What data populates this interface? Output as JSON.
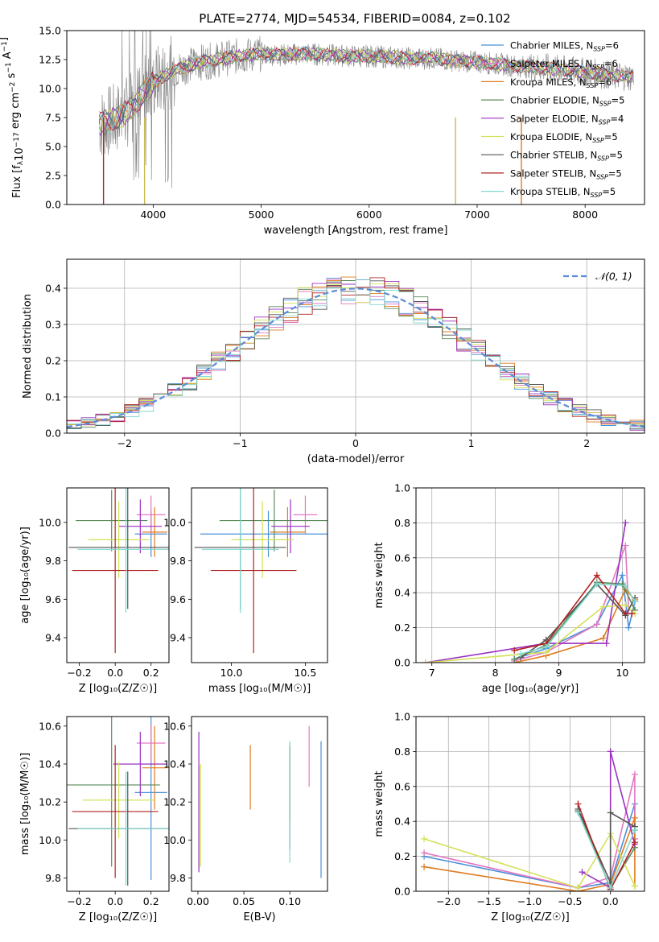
{
  "title": "PLATE=2774, MJD=54534, FIBERID=0084, z=0.102",
  "colors": {
    "Chabrier MILES": "#4a90d9",
    "Salpeter MILES": "#e377c2",
    "Kroupa MILES": "#e07b20",
    "Chabrier ELODIE": "#5a8a5a",
    "Salpeter ELODIE": "#9b30c0",
    "Kroupa ELODIE": "#d4e157",
    "Chabrier STELIB": "#555555",
    "Salpeter STELIB": "#b22222",
    "Kroupa STELIB": "#80d8d0",
    "gaussian": "#5b8bd9",
    "data": "#808080"
  },
  "chart_data": [
    {
      "id": "spectrum",
      "type": "line",
      "title": "PLATE=2774, MJD=54534, FIBERID=0084, z=0.102",
      "xlabel": "wavelength [Angstrom, rest frame]",
      "ylabel": "Flux [fλ10⁻¹⁷ erg cm⁻² s⁻¹ A⁻¹]",
      "xlim": [
        3200,
        8550
      ],
      "ylim": [
        0,
        15
      ],
      "xticks": [
        4000,
        5000,
        6000,
        7000,
        8000
      ],
      "yticks": [
        0.0,
        2.5,
        5.0,
        7.5,
        10.0,
        12.5,
        15.0
      ],
      "x": [
        3520,
        3600,
        3700,
        3800,
        3900,
        4000,
        4200,
        4400,
        4600,
        4800,
        5000,
        5200,
        5400,
        5600,
        5800,
        6000,
        6200,
        6400,
        6600,
        6800,
        7000,
        7200,
        7400,
        7600,
        7800,
        8000,
        8200,
        8450
      ],
      "model": [
        7.0,
        7.2,
        7.6,
        8.3,
        9.5,
        10.5,
        11.6,
        12.2,
        12.5,
        12.8,
        13.0,
        12.9,
        13.0,
        12.9,
        12.8,
        12.8,
        12.7,
        12.6,
        12.6,
        12.4,
        12.3,
        12.1,
        11.9,
        11.8,
        11.6,
        11.4,
        11.2,
        11.0
      ],
      "legend": [
        "Chabrier MILES, N_SSP=6",
        "Salpeter MILES, N_SSP=6",
        "Kroupa MILES, N_SSP=6",
        "Chabrier ELODIE, N_SSP=5",
        "Salpeter ELODIE, N_SSP=4",
        "Kroupa ELODIE, N_SSP=5",
        "Chabrier STELIB, N_SSP=5",
        "Salpeter STELIB, N_SSP=5",
        "Kroupa STELIB, N_SSP=5"
      ],
      "legend_placement": "right"
    },
    {
      "id": "residuals",
      "type": "line",
      "xlabel": "(data-model)/error",
      "ylabel": "Normed distribution",
      "xlim": [
        -2.5,
        2.5
      ],
      "ylim": [
        0,
        0.48
      ],
      "xticks": [
        -2,
        -1,
        0,
        1,
        2
      ],
      "yticks": [
        0.0,
        0.1,
        0.2,
        0.3,
        0.4
      ],
      "gaussian_label": "𝒩(0, 1)",
      "grid": true
    },
    {
      "id": "age-vs-Z",
      "type": "scatter",
      "xlabel": "Z [log₁₀(Z/Z☉)]",
      "ylabel": "age  [log₁₀(age/yr)]",
      "xlim": [
        -0.27,
        0.3
      ],
      "ylim": [
        9.27,
        10.18
      ],
      "xticks": [
        -0.2,
        0.0,
        0.2
      ],
      "yticks": [
        9.4,
        9.6,
        9.8,
        10.0
      ],
      "points": [
        {
          "model": "Chabrier MILES",
          "x": 0.2,
          "y": 9.94,
          "xerr": 0.09,
          "yerr": 0.12
        },
        {
          "model": "Salpeter MILES",
          "x": 0.2,
          "y": 10.04,
          "xerr": 0.08,
          "yerr": 0.1
        },
        {
          "model": "Kroupa MILES",
          "x": 0.22,
          "y": 9.95,
          "xerr": 0.07,
          "yerr": 0.13
        },
        {
          "model": "Chabrier ELODIE",
          "x": -0.02,
          "y": 10.01,
          "xerr": 0.2,
          "yerr": 0.16
        },
        {
          "model": "Salpeter ELODIE",
          "x": 0.14,
          "y": 9.98,
          "xerr": 0.12,
          "yerr": 0.14
        },
        {
          "model": "Kroupa ELODIE",
          "x": 0.02,
          "y": 9.91,
          "xerr": 0.17,
          "yerr": 0.2
        },
        {
          "model": "Chabrier STELIB",
          "x": 0.07,
          "y": 9.87,
          "xerr": 0.33,
          "yerr": 0.32
        },
        {
          "model": "Salpeter STELIB",
          "x": 0.0,
          "y": 9.75,
          "xerr": 0.24,
          "yerr": 0.43
        },
        {
          "model": "Kroupa STELIB",
          "x": 0.06,
          "y": 9.86,
          "xerr": 0.27,
          "yerr": 0.33
        }
      ]
    },
    {
      "id": "age-vs-mass",
      "type": "scatter",
      "xlabel": "mass [log₁₀(M/M☉)]",
      "xlim": [
        9.73,
        10.65
      ],
      "ylim": [
        9.27,
        10.18
      ],
      "xticks": [
        10.0,
        10.5
      ],
      "yticks": [
        9.4,
        9.6,
        9.8,
        10.0
      ],
      "points": [
        {
          "model": "Chabrier MILES",
          "x": 10.25,
          "y": 9.94,
          "xerr": 0.46,
          "yerr": 0.12
        },
        {
          "model": "Salpeter MILES",
          "x": 10.5,
          "y": 10.04,
          "xerr": 0.08,
          "yerr": 0.1
        },
        {
          "model": "Kroupa MILES",
          "x": 10.38,
          "y": 9.95,
          "xerr": 0.12,
          "yerr": 0.13
        },
        {
          "model": "Chabrier ELODIE",
          "x": 10.29,
          "y": 10.01,
          "xerr": 0.37,
          "yerr": 0.16
        },
        {
          "model": "Salpeter ELODIE",
          "x": 10.4,
          "y": 9.98,
          "xerr": 0.13,
          "yerr": 0.14
        },
        {
          "model": "Kroupa ELODIE",
          "x": 10.21,
          "y": 9.91,
          "xerr": 0.21,
          "yerr": 0.2
        },
        {
          "model": "Chabrier STELIB",
          "x": 10.06,
          "y": 9.87,
          "xerr": 0.31,
          "yerr": 0.32
        },
        {
          "model": "Salpeter STELIB",
          "x": 10.15,
          "y": 9.75,
          "xerr": 0.29,
          "yerr": 0.43
        },
        {
          "model": "Kroupa STELIB",
          "x": 10.06,
          "y": 9.86,
          "xerr": 0.26,
          "yerr": 0.33
        }
      ]
    },
    {
      "id": "weight-vs-age",
      "type": "line",
      "xlabel": "age  [log₁₀(age/yr)]",
      "ylabel": "mass weight",
      "xlim": [
        6.75,
        10.35
      ],
      "ylim": [
        0,
        1.0
      ],
      "xticks": [
        7,
        8,
        9,
        10
      ],
      "yticks": [
        0.0,
        0.2,
        0.4,
        0.6,
        0.8,
        1.0
      ],
      "grid": true,
      "series": [
        {
          "model": "Chabrier MILES",
          "x": [
            8.3,
            8.8,
            9.6,
            10.0,
            10.1,
            10.2
          ],
          "y": [
            0.02,
            0.08,
            0.22,
            0.5,
            0.2,
            0.35
          ]
        },
        {
          "model": "Salpeter MILES",
          "x": [
            8.3,
            8.8,
            9.6,
            10.05,
            10.1
          ],
          "y": [
            0.01,
            0.06,
            0.22,
            0.67,
            0.3
          ]
        },
        {
          "model": "Kroupa MILES",
          "x": [
            8.3,
            8.8,
            9.7,
            10.05,
            10.2
          ],
          "y": [
            0.0,
            0.04,
            0.14,
            0.42,
            0.36
          ]
        },
        {
          "model": "Chabrier ELODIE",
          "x": [
            8.3,
            8.8,
            9.6,
            10.0,
            10.2
          ],
          "y": [
            0.02,
            0.1,
            0.46,
            0.45,
            0.3
          ]
        },
        {
          "model": "Salpeter ELODIE",
          "x": [
            6.9,
            8.8,
            9.75,
            10.05
          ],
          "y": [
            0.0,
            0.11,
            0.11,
            0.8
          ]
        },
        {
          "model": "Kroupa ELODIE",
          "x": [
            6.9,
            8.8,
            9.7,
            10.05,
            10.2
          ],
          "y": [
            0.0,
            0.06,
            0.32,
            0.33,
            0.28
          ]
        },
        {
          "model": "Chabrier STELIB",
          "x": [
            8.4,
            8.8,
            9.6,
            10.05,
            10.2
          ],
          "y": [
            0.03,
            0.13,
            0.45,
            0.27,
            0.37
          ]
        },
        {
          "model": "Salpeter STELIB",
          "x": [
            8.3,
            8.8,
            9.6,
            10.05,
            10.15
          ],
          "y": [
            0.07,
            0.11,
            0.5,
            0.28,
            0.28
          ]
        },
        {
          "model": "Kroupa STELIB",
          "x": [
            8.4,
            8.8,
            9.6,
            10.05,
            10.2
          ],
          "y": [
            0.05,
            0.09,
            0.45,
            0.44,
            0.35
          ]
        }
      ]
    },
    {
      "id": "mass-vs-Z",
      "type": "scatter",
      "xlabel": "Z [log₁₀(Z/Z☉)]",
      "ylabel": "mass [log₁₀(M/M☉)]",
      "xlim": [
        -0.27,
        0.3
      ],
      "ylim": [
        9.73,
        10.65
      ],
      "xticks": [
        -0.2,
        0.0,
        0.2
      ],
      "yticks": [
        9.8,
        10.0,
        10.2,
        10.4,
        10.6
      ],
      "points": [
        {
          "model": "Chabrier MILES",
          "x": 0.2,
          "y": 10.25,
          "xerr": 0.09,
          "yerr": 0.46
        },
        {
          "model": "Salpeter MILES",
          "x": 0.2,
          "y": 10.51,
          "xerr": 0.08,
          "yerr": 0.1
        },
        {
          "model": "Kroupa MILES",
          "x": 0.22,
          "y": 10.38,
          "xerr": 0.07,
          "yerr": 0.22
        },
        {
          "model": "Chabrier ELODIE",
          "x": -0.02,
          "y": 10.29,
          "xerr": 0.27,
          "yerr": 0.43
        },
        {
          "model": "Salpeter ELODIE",
          "x": 0.14,
          "y": 10.4,
          "xerr": 0.15,
          "yerr": 0.17
        },
        {
          "model": "Kroupa ELODIE",
          "x": 0.02,
          "y": 10.21,
          "xerr": 0.2,
          "yerr": 0.2
        },
        {
          "model": "Chabrier STELIB",
          "x": 0.07,
          "y": 10.06,
          "xerr": 0.33,
          "yerr": 0.3
        },
        {
          "model": "Salpeter STELIB",
          "x": 0.0,
          "y": 10.15,
          "xerr": 0.24,
          "yerr": 0.35
        },
        {
          "model": "Kroupa STELIB",
          "x": 0.06,
          "y": 10.06,
          "xerr": 0.27,
          "yerr": 0.3
        }
      ]
    },
    {
      "id": "mass-vs-ebv",
      "type": "scatter",
      "xlabel": "E(B-V)",
      "xlim": [
        -0.007,
        0.141
      ],
      "ylim": [
        9.73,
        10.65
      ],
      "xticks": [
        0.0,
        0.05,
        0.1
      ],
      "yticks": [
        9.8,
        10.0,
        10.2,
        10.4,
        10.6
      ],
      "points": [
        {
          "model": "Chabrier MILES",
          "x": 0.134,
          "y": 10.16,
          "yerr": 0.36
        },
        {
          "model": "Salpeter MILES",
          "x": 0.121,
          "y": 10.44,
          "yerr": 0.16
        },
        {
          "model": "Kroupa MILES",
          "x": 0.057,
          "y": 10.33,
          "yerr": 0.17
        },
        {
          "model": "Chabrier ELODIE",
          "x": 0.001,
          "y": 10.12,
          "yerr": 0.27
        },
        {
          "model": "Salpeter ELODIE",
          "x": 0.001,
          "y": 10.2,
          "yerr": 0.37
        },
        {
          "model": "Kroupa ELODIE",
          "x": 0.003,
          "y": 10.13,
          "yerr": 0.27
        },
        {
          "model": "Chabrier STELIB",
          "x": 0.1,
          "y": 10.22,
          "yerr": 0.27
        },
        {
          "model": "Salpeter STELIB",
          "x": 0.1,
          "y": 10.3,
          "yerr": 0.2
        },
        {
          "model": "Kroupa STELIB",
          "x": 0.1,
          "y": 10.2,
          "yerr": 0.32
        }
      ]
    },
    {
      "id": "weight-vs-Z",
      "type": "line",
      "xlabel": "Z [log₁₀(Z/Z☉)]",
      "ylabel": "mass weight",
      "xlim": [
        -2.4,
        0.42
      ],
      "ylim": [
        0,
        1.0
      ],
      "xticks": [
        -2.0,
        -1.5,
        -1.0,
        -0.5,
        0.0
      ],
      "yticks": [
        0.0,
        0.2,
        0.4,
        0.6,
        0.8,
        1.0
      ],
      "grid": true,
      "series": [
        {
          "model": "Chabrier MILES",
          "x": [
            -2.3,
            -0.4,
            0.0,
            0.3,
            0.3
          ],
          "y": [
            0.2,
            0.02,
            0.05,
            0.5,
            0.35
          ]
        },
        {
          "model": "Salpeter MILES",
          "x": [
            -2.3,
            -0.4,
            0.0,
            0.3,
            0.3
          ],
          "y": [
            0.22,
            0.02,
            0.08,
            0.67,
            0.3
          ]
        },
        {
          "model": "Kroupa MILES",
          "x": [
            -2.3,
            -0.4,
            0.0,
            0.3,
            0.3
          ],
          "y": [
            0.14,
            0.0,
            0.04,
            0.42,
            0.03
          ]
        },
        {
          "model": "Chabrier ELODIE",
          "x": [
            -0.4,
            0.0,
            0.3
          ],
          "y": [
            0.46,
            0.02,
            0.25
          ]
        },
        {
          "model": "Salpeter ELODIE",
          "x": [
            -0.35,
            0.0,
            0.0,
            0.3
          ],
          "y": [
            0.11,
            0.02,
            0.8,
            0.27
          ]
        },
        {
          "model": "Kroupa ELODIE",
          "x": [
            -2.3,
            -0.4,
            0.0,
            0.3
          ],
          "y": [
            0.3,
            0.02,
            0.33,
            0.03
          ]
        },
        {
          "model": "Chabrier STELIB",
          "x": [
            -0.4,
            0.0,
            0.0,
            0.3
          ],
          "y": [
            0.47,
            0.05,
            0.45,
            0.37
          ]
        },
        {
          "model": "Salpeter STELIB",
          "x": [
            -0.4,
            0.0,
            0.3
          ],
          "y": [
            0.5,
            0.01,
            0.28
          ]
        },
        {
          "model": "Kroupa STELIB",
          "x": [
            -0.4,
            0.0,
            0.3
          ],
          "y": [
            0.45,
            0.02,
            0.35
          ]
        }
      ]
    }
  ]
}
